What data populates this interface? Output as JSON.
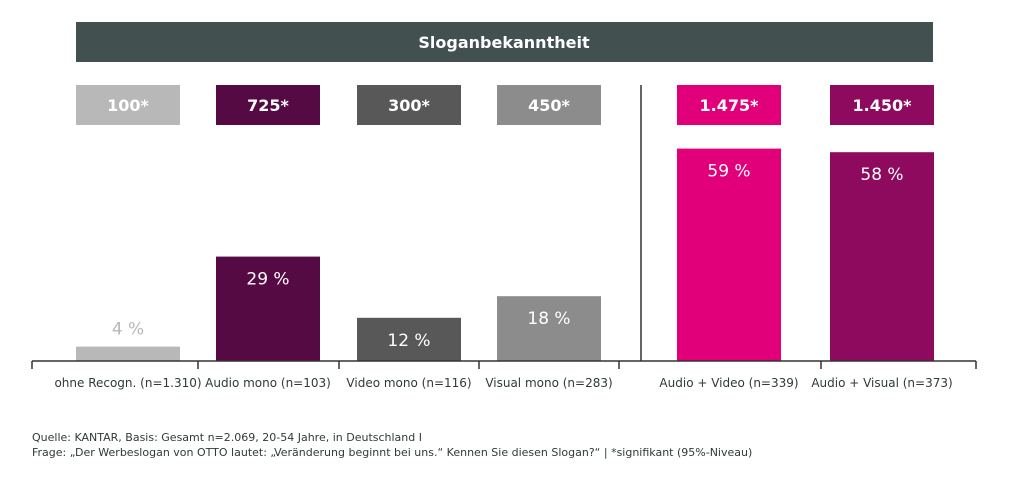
{
  "chart_data": {
    "type": "bar",
    "title": "Sloganbekanntheit",
    "categories": [
      "ohne Recogn. (n=1.310)",
      "Audio mono (n=103)",
      "Video mono (n=116)",
      "Visual mono (n=283)",
      "Audio + Video (n=339)",
      "Audio + Visual (n=373)"
    ],
    "values": [
      4,
      29,
      12,
      18,
      59,
      58
    ],
    "value_labels": [
      "4 %",
      "29 %",
      "12 %",
      "18 %",
      "59 %",
      "58 %"
    ],
    "index_labels": [
      "100*",
      "725*",
      "300*",
      "450*",
      "1.475*",
      "1.450*"
    ],
    "colors": [
      "#b8b8b8",
      "#560a44",
      "#585858",
      "#8c8c8c",
      "#e2007a",
      "#8e0a5e"
    ],
    "title_bar_color": "#435050",
    "ylim": [
      0,
      100
    ]
  },
  "footnotes": {
    "source": "Quelle: KANTAR, Basis: Gesamt n=2.069, 20-54 Jahre, in Deutschland I",
    "question": "Frage: „Der Werbeslogan von OTTO lautet: „Veränderung beginnt bei uns.“ Kennen Sie diesen Slogan?“ | *signifikant (95%-Niveau)"
  }
}
